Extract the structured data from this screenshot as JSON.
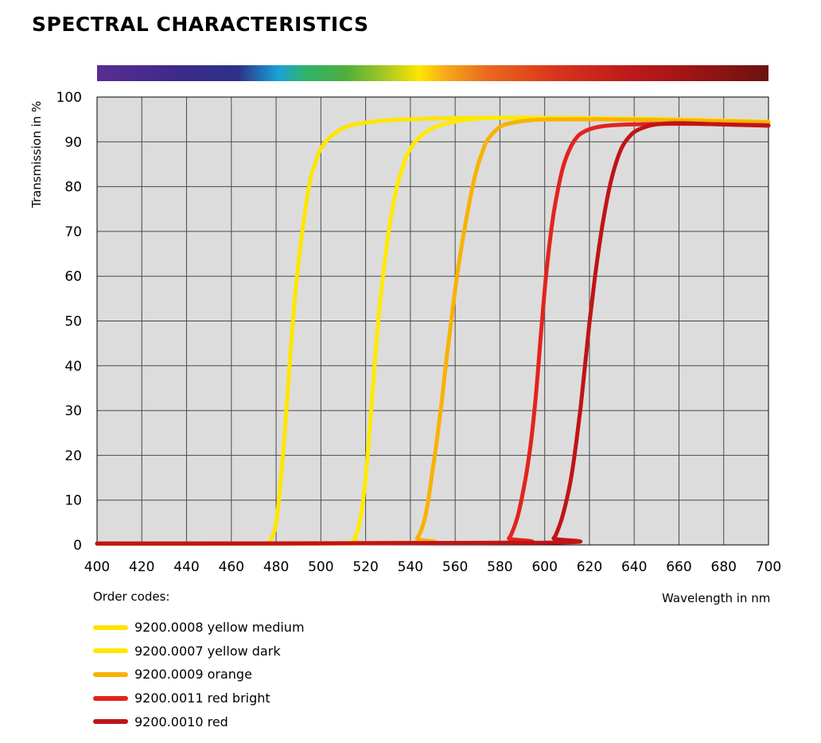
{
  "title": "SPECTRAL CHARACTERISTICS",
  "chart_data": {
    "type": "line",
    "ylabel": "Transmission in %",
    "xlabel": "Wavelength in nm",
    "xlim": [
      400,
      700
    ],
    "ylim": [
      0,
      100
    ],
    "x_ticks": [
      400,
      420,
      440,
      460,
      480,
      500,
      520,
      540,
      560,
      580,
      600,
      620,
      640,
      660,
      680,
      700
    ],
    "y_ticks": [
      0,
      10,
      20,
      30,
      40,
      50,
      60,
      70,
      80,
      90,
      100
    ],
    "grid": true,
    "spectrum_bar": true,
    "legend_title": "Order codes:",
    "legend_position": "bottom-left",
    "series": [
      {
        "name": "9200.0008 yellow medium",
        "color": "#FFE500",
        "x": [
          400,
          470,
          476,
          478,
          480,
          482,
          484,
          486,
          488,
          490,
          492,
          494,
          496,
          498,
          500,
          504,
          508,
          512,
          520,
          530,
          550,
          580,
          620,
          660,
          700
        ],
        "y": [
          0.3,
          0.3,
          0.5,
          1.5,
          5,
          14,
          26,
          40,
          53,
          63,
          71,
          78,
          83,
          86,
          88.5,
          91,
          92.5,
          93.5,
          94.3,
          94.8,
          95.2,
          95.4,
          95.3,
          95,
          94.5
        ]
      },
      {
        "name": "9200.0007 yellow dark",
        "color": "#FFE900",
        "x": [
          400,
          510,
          514,
          516,
          518,
          520,
          522,
          524,
          526,
          528,
          530,
          532,
          534,
          536,
          538,
          540,
          544,
          548,
          552,
          560,
          570,
          590,
          620,
          660,
          700
        ],
        "y": [
          0.3,
          0.3,
          0.8,
          2.5,
          7,
          15,
          27,
          40,
          52,
          61,
          69,
          75,
          80,
          83.5,
          86.5,
          88.5,
          91,
          92.5,
          93.5,
          94.5,
          95.2,
          95.4,
          95.2,
          94.8,
          94.3
        ]
      },
      {
        "name": "9200.0009 orange",
        "color": "#F8B200",
        "x": [
          400,
          540,
          543,
          546,
          548,
          550,
          552,
          554,
          556,
          558,
          560,
          562,
          564,
          566,
          568,
          570,
          572,
          574,
          578,
          582,
          590,
          600,
          630,
          660,
          700
        ],
        "y": [
          0.3,
          0.5,
          1.5,
          5,
          10,
          17,
          24,
          32,
          41,
          49,
          57,
          64,
          70,
          75.5,
          80.5,
          84.5,
          87.5,
          90,
          92.5,
          93.8,
          94.6,
          95,
          95,
          94.8,
          94.4
        ]
      },
      {
        "name": "9200.0011 red bright",
        "color": "#E3231D",
        "x": [
          400,
          580,
          584,
          586,
          588,
          590,
          592,
          594,
          596,
          598,
          600,
          602,
          604,
          606,
          608,
          610,
          612,
          614,
          616,
          620,
          626,
          634,
          650,
          670,
          700
        ],
        "y": [
          0.3,
          0.5,
          1.5,
          3.5,
          6.5,
          11,
          16.5,
          23.5,
          33,
          45,
          57,
          66.5,
          74,
          79.5,
          84,
          87,
          89.2,
          90.8,
          91.8,
          92.8,
          93.5,
          93.8,
          94,
          94,
          93.7
        ]
      },
      {
        "name": "9200.0010 red",
        "color": "#C01417",
        "x": [
          400,
          600,
          604,
          606,
          608,
          610,
          612,
          614,
          616,
          618,
          620,
          622,
          624,
          626,
          628,
          630,
          632,
          634,
          636,
          640,
          646,
          652,
          660,
          672,
          700
        ],
        "y": [
          0.3,
          0.5,
          1.5,
          3.5,
          6.5,
          10.5,
          15.5,
          22.5,
          30.5,
          40,
          49.5,
          58,
          65.5,
          72,
          77.5,
          82,
          85.5,
          88.2,
          90,
          92.2,
          93.5,
          94,
          94.2,
          94,
          93.6
        ]
      }
    ]
  }
}
